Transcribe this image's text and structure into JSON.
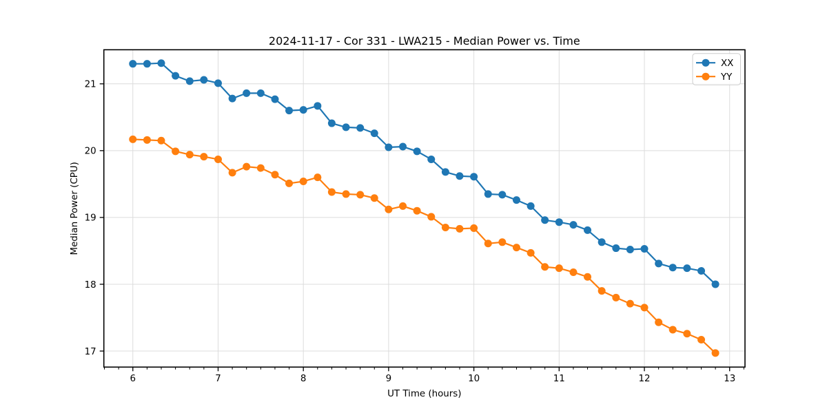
{
  "chart_data": {
    "type": "line",
    "title": "2024-11-17 - Cor 331 - LWA215 - Median Power vs. Time",
    "xlabel": "UT Time (hours)",
    "ylabel": "Median Power (CPU)",
    "x": [
      6.0,
      6.167,
      6.333,
      6.5,
      6.667,
      6.833,
      7.0,
      7.167,
      7.333,
      7.5,
      7.667,
      7.833,
      8.0,
      8.167,
      8.333,
      8.5,
      8.667,
      8.833,
      9.0,
      9.167,
      9.333,
      9.5,
      9.667,
      9.833,
      10.0,
      10.167,
      10.333,
      10.5,
      10.667,
      10.833,
      11.0,
      11.167,
      11.333,
      11.5,
      11.667,
      11.833,
      12.0,
      12.167,
      12.333,
      12.5,
      12.667,
      12.833
    ],
    "series": [
      {
        "name": "XX",
        "color": "#1f77b4",
        "values": [
          21.3,
          21.3,
          21.31,
          21.12,
          21.04,
          21.06,
          21.01,
          20.78,
          20.86,
          20.86,
          20.77,
          20.6,
          20.61,
          20.67,
          20.41,
          20.35,
          20.34,
          20.26,
          20.05,
          20.06,
          19.99,
          19.87,
          19.68,
          19.62,
          19.61,
          19.35,
          19.34,
          19.26,
          19.17,
          18.96,
          18.93,
          18.89,
          18.81,
          18.63,
          18.54,
          18.52,
          18.53,
          18.31,
          18.25,
          18.24,
          18.2,
          18.0
        ]
      },
      {
        "name": "YY",
        "color": "#ff7f0e",
        "values": [
          20.17,
          20.16,
          20.15,
          19.99,
          19.94,
          19.91,
          19.87,
          19.67,
          19.76,
          19.74,
          19.64,
          19.51,
          19.54,
          19.6,
          19.38,
          19.35,
          19.34,
          19.29,
          19.12,
          19.17,
          19.1,
          19.01,
          18.85,
          18.83,
          18.84,
          18.61,
          18.63,
          18.55,
          18.47,
          18.26,
          18.24,
          18.18,
          18.11,
          17.9,
          17.8,
          17.71,
          17.65,
          17.43,
          17.32,
          17.26,
          17.17,
          16.97
        ]
      }
    ],
    "xlim": [
      5.66,
      13.18
    ],
    "ylim": [
      16.76,
      21.51
    ],
    "x_ticks": [
      6,
      7,
      8,
      9,
      10,
      11,
      12,
      13
    ],
    "y_ticks": [
      17,
      18,
      19,
      20,
      21
    ],
    "x_minor_tick_step": 0.1666667,
    "grid": true,
    "grid_color": "#dcdcdc",
    "spine_color": "#000000",
    "background_color": "#ffffff",
    "legend_position": "upper right",
    "legend_entries": [
      "XX",
      "YY"
    ],
    "marker": "circle"
  }
}
